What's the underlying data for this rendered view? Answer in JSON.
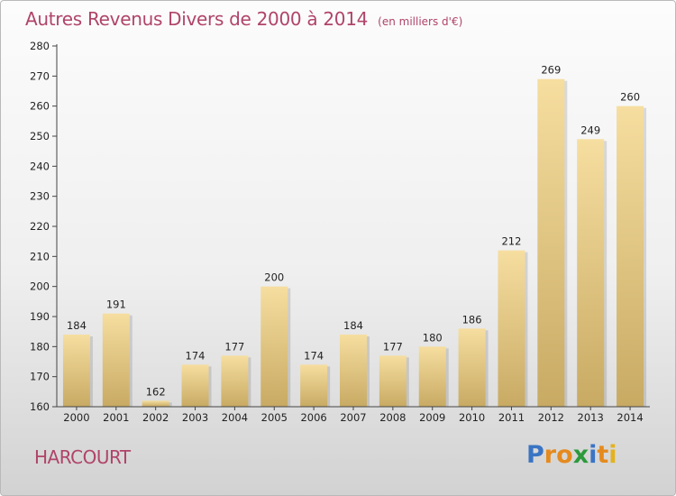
{
  "title": "Autres Revenus Divers de 2000 à 2014",
  "subtitle": "(en milliers d'€)",
  "commune": "HARCOURT",
  "brand": {
    "letters": [
      "P",
      "r",
      "o",
      "x",
      "i",
      "t",
      "i"
    ],
    "colors": [
      "#3a74c4",
      "#e58a1e",
      "#e58a1e",
      "#2b9a3c",
      "#3a74c4",
      "#e58a1e",
      "#e5b21e"
    ]
  },
  "colors": {
    "accent": "#b0446a",
    "bar_light": "#f6dea0",
    "bar_dark": "#c8aa63"
  },
  "chart_data": {
    "type": "bar",
    "categories": [
      "2000",
      "2001",
      "2002",
      "2003",
      "2004",
      "2005",
      "2006",
      "2007",
      "2008",
      "2009",
      "2010",
      "2011",
      "2012",
      "2013",
      "2014"
    ],
    "values": [
      184,
      191,
      162,
      174,
      177,
      200,
      174,
      184,
      177,
      180,
      186,
      212,
      269,
      249,
      260
    ],
    "data_labels": [
      "184",
      "191",
      "162",
      "174",
      "177",
      "200",
      "174",
      "184",
      "177",
      "180",
      "186",
      "212",
      "269",
      "249",
      "260"
    ],
    "ylim": [
      160,
      280
    ],
    "yticks": [
      160,
      170,
      180,
      190,
      200,
      210,
      220,
      230,
      240,
      250,
      260,
      270,
      280
    ],
    "grid": false
  }
}
